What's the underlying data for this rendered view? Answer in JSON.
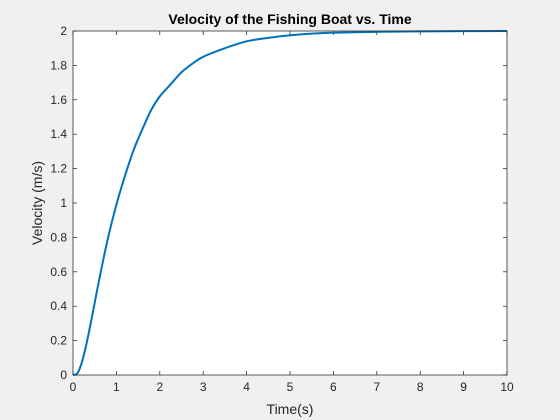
{
  "chart_data": {
    "type": "line",
    "title": "Velocity of the Fishing Boat vs. Time",
    "xlabel": "Time(s)",
    "ylabel": "Velocity (m/s)",
    "xlim": [
      0,
      10
    ],
    "ylim": [
      0,
      2
    ],
    "grid": false,
    "xticks": [
      "0",
      "1",
      "2",
      "3",
      "4",
      "5",
      "6",
      "7",
      "8",
      "9",
      "10"
    ],
    "yticks": [
      "0",
      "0.2",
      "0.4",
      "0.6",
      "0.8",
      "1",
      "1.2",
      "1.4",
      "1.6",
      "1.8",
      "2"
    ],
    "series": [
      {
        "color": "#0072bd",
        "x": [
          0,
          0.1,
          0.2,
          0.3,
          0.4,
          0.5,
          0.6,
          0.8,
          1.0,
          1.2,
          1.4,
          1.6,
          1.8,
          2.0,
          2.25,
          2.5,
          2.75,
          3.0,
          3.5,
          4.0,
          4.5,
          5.0,
          5.5,
          6.0,
          7.0,
          8.0,
          9.0,
          10.0
        ],
        "y": [
          0,
          0.01,
          0.07,
          0.17,
          0.29,
          0.42,
          0.55,
          0.79,
          0.99,
          1.16,
          1.31,
          1.43,
          1.54,
          1.62,
          1.69,
          1.76,
          1.81,
          1.85,
          1.9,
          1.94,
          1.96,
          1.975,
          1.985,
          1.99,
          1.995,
          1.998,
          1.999,
          2.0
        ]
      }
    ]
  }
}
